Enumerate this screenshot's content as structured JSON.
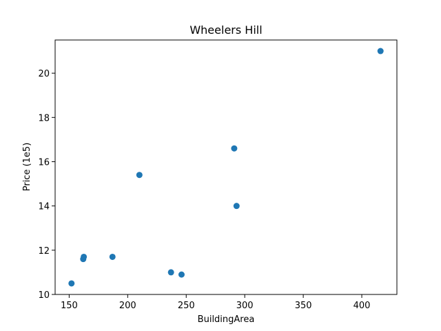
{
  "chart_data": {
    "type": "scatter",
    "title": "Wheelers Hill",
    "xlabel": "BuildingArea",
    "ylabel": "Price (1e5)",
    "xlim": [
      138,
      430
    ],
    "ylim": [
      10.0,
      21.5
    ],
    "x_ticks": [
      150,
      200,
      250,
      300,
      350,
      400
    ],
    "y_ticks": [
      10,
      12,
      14,
      16,
      18,
      20
    ],
    "grid": false,
    "color": "#1f77b4",
    "series": [
      {
        "points": [
          {
            "x": 152,
            "y": 10.5
          },
          {
            "x": 162,
            "y": 11.6
          },
          {
            "x": 162.5,
            "y": 11.7
          },
          {
            "x": 187,
            "y": 11.7
          },
          {
            "x": 210,
            "y": 15.4
          },
          {
            "x": 237,
            "y": 11.0
          },
          {
            "x": 246,
            "y": 10.9
          },
          {
            "x": 291,
            "y": 16.6
          },
          {
            "x": 293,
            "y": 14.0
          },
          {
            "x": 416,
            "y": 21.0
          }
        ]
      }
    ]
  }
}
